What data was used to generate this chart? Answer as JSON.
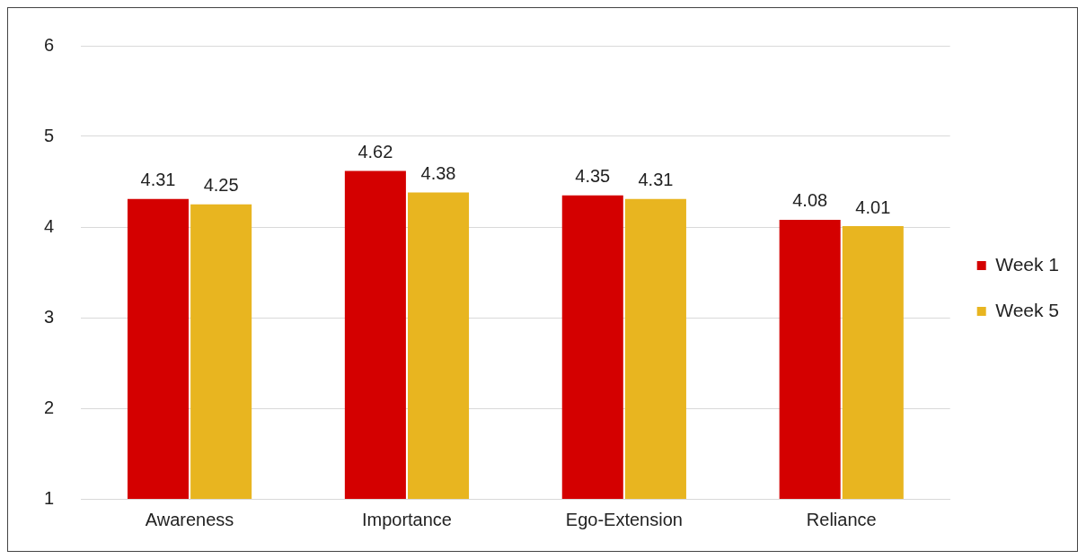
{
  "chart_data": {
    "type": "bar",
    "categories": [
      "Awareness",
      "Importance",
      "Ego-Extension",
      "Reliance"
    ],
    "series": [
      {
        "name": "Week 1",
        "color": "#d40000",
        "values": [
          4.31,
          4.62,
          4.35,
          4.08
        ]
      },
      {
        "name": "Week 5",
        "color": "#e8b520",
        "values": [
          4.25,
          4.38,
          4.31,
          4.01
        ]
      }
    ],
    "ylim": [
      1,
      6
    ],
    "yticks": [
      1,
      2,
      3,
      4,
      5,
      6
    ],
    "grid": "y",
    "legend": "right",
    "data_labels": true
  }
}
